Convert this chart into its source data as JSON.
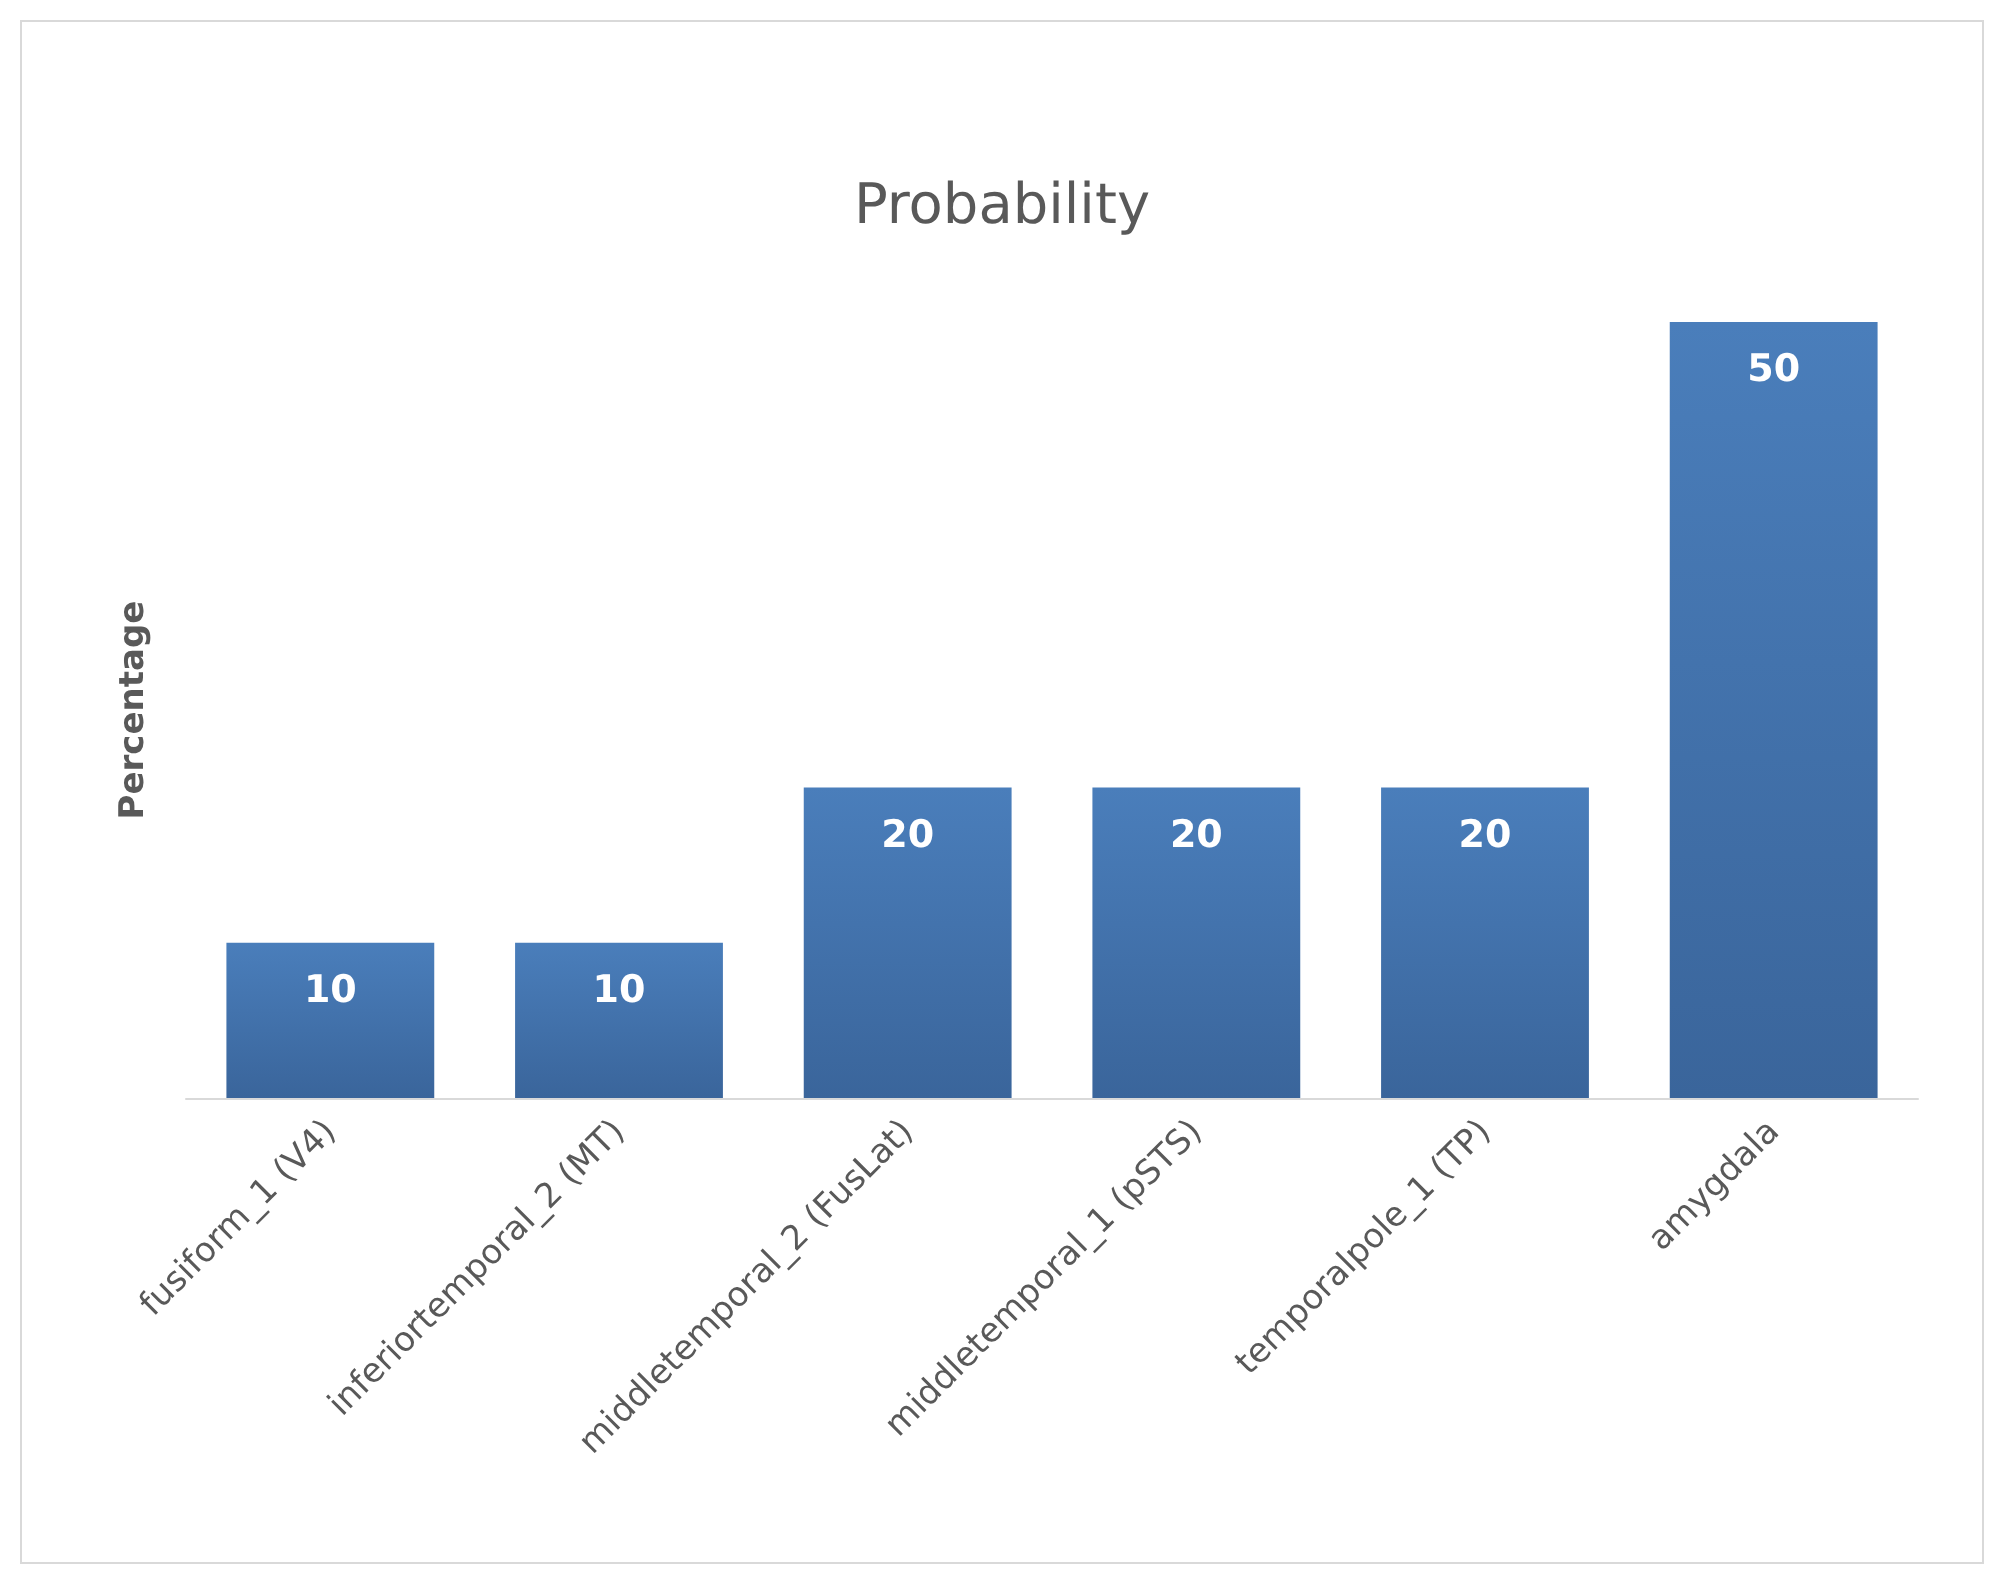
{
  "chart_data": {
    "type": "bar",
    "title": "Probability",
    "ylabel": "Percentage",
    "categories": [
      "fusiform_1 (V4)",
      "inferiortemporal_2 (MT)",
      "middletemporal_2 (FusLat)",
      "middletemporal_1 (pSTS)",
      "temporalpole_1 (TP)",
      "amygdala"
    ],
    "values": [
      10,
      10,
      20,
      20,
      20,
      50
    ],
    "color": "#4a7ebb",
    "data_labels": true,
    "grid": false,
    "tick_labels": "x"
  }
}
